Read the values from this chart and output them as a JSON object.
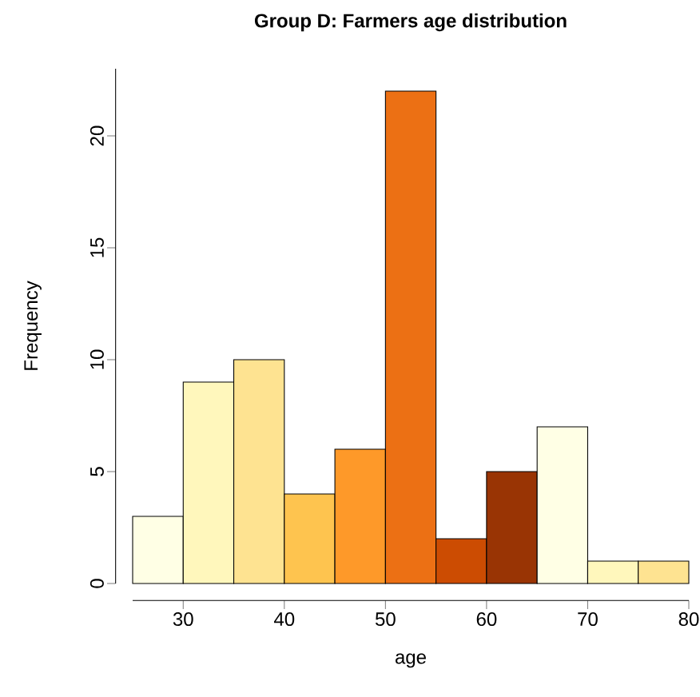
{
  "chart_data": {
    "type": "histogram",
    "title": "Group D: Farmers age distribution",
    "xlabel": "age",
    "ylabel": "Frequency",
    "bins": [
      25,
      30,
      35,
      40,
      45,
      50,
      55,
      60,
      65,
      70,
      75,
      80
    ],
    "values": [
      3,
      9,
      10,
      4,
      6,
      22,
      2,
      5,
      7,
      1,
      1
    ],
    "colors": [
      "#ffffe5",
      "#fff7bc",
      "#fee391",
      "#fec44f",
      "#fe9929",
      "#ec7014",
      "#cc4c02",
      "#993404",
      "#ffffe5",
      "#fff7bc",
      "#fee391"
    ],
    "xlim": [
      25,
      80
    ],
    "ylim": [
      0,
      23
    ],
    "xticks": [
      30,
      40,
      50,
      60,
      70,
      80
    ],
    "yticks": [
      0,
      5,
      10,
      15,
      20
    ]
  }
}
